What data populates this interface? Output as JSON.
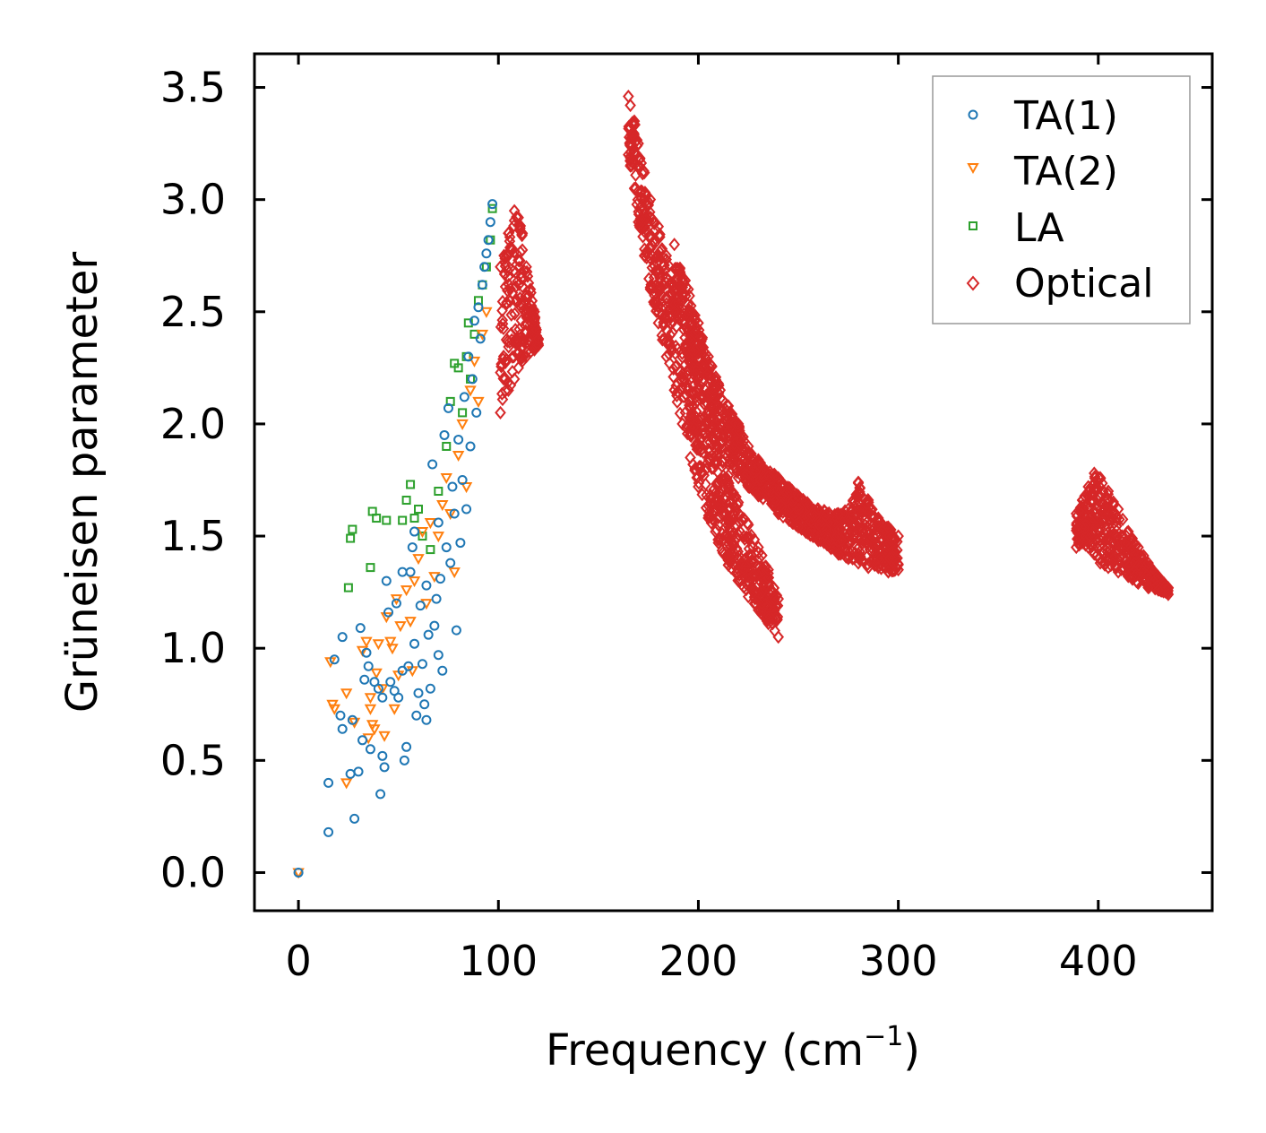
{
  "chart_data": {
    "type": "scatter",
    "title": "",
    "xlabel": "Frequency (cm",
    "xlabel_sup": "−1",
    "xlabel_end": ")",
    "ylabel": "Grüneisen parameter",
    "xlim": [
      -22,
      457
    ],
    "ylim": [
      -0.17,
      3.65
    ],
    "xticks": [
      0,
      100,
      200,
      300,
      400
    ],
    "xtick_labels": [
      "0",
      "100",
      "200",
      "300",
      "400"
    ],
    "yticks": [
      0.0,
      0.5,
      1.0,
      1.5,
      2.0,
      2.5,
      3.0,
      3.5
    ],
    "ytick_labels": [
      "0.0",
      "0.5",
      "1.0",
      "1.5",
      "2.0",
      "2.5",
      "3.0",
      "3.5"
    ],
    "legend_position": "top-right",
    "series": [
      {
        "name": "TA(1)",
        "marker": "circle",
        "color": "#1f77b4",
        "points": [
          [
            0,
            0
          ],
          [
            15,
            0.18
          ],
          [
            15,
            0.4
          ],
          [
            28,
            0.24
          ],
          [
            26,
            0.44
          ],
          [
            30,
            0.45
          ],
          [
            18,
            0.95
          ],
          [
            22,
            1.05
          ],
          [
            21,
            0.7
          ],
          [
            22,
            0.64
          ],
          [
            27,
            0.68
          ],
          [
            32,
            0.59
          ],
          [
            36,
            0.55
          ],
          [
            41,
            0.35
          ],
          [
            43,
            0.47
          ],
          [
            42,
            0.52
          ],
          [
            31,
            1.09
          ],
          [
            33,
            0.86
          ],
          [
            35,
            0.92
          ],
          [
            34,
            0.98
          ],
          [
            38,
            0.85
          ],
          [
            40,
            0.82
          ],
          [
            42,
            0.78
          ],
          [
            44,
            1.3
          ],
          [
            45,
            1.16
          ],
          [
            46,
            0.85
          ],
          [
            48,
            0.81
          ],
          [
            49,
            1.2
          ],
          [
            50,
            0.78
          ],
          [
            52,
            0.9
          ],
          [
            53,
            0.5
          ],
          [
            54,
            0.56
          ],
          [
            55,
            0.92
          ],
          [
            52,
            1.34
          ],
          [
            56,
            1.34
          ],
          [
            57,
            1.45
          ],
          [
            58,
            1.52
          ],
          [
            58,
            1.02
          ],
          [
            59,
            0.7
          ],
          [
            60,
            0.8
          ],
          [
            61,
            1.19
          ],
          [
            62,
            0.93
          ],
          [
            63,
            0.75
          ],
          [
            64,
            0.68
          ],
          [
            64,
            1.28
          ],
          [
            65,
            1.06
          ],
          [
            66,
            0.82
          ],
          [
            67,
            1.82
          ],
          [
            68,
            1.1
          ],
          [
            69,
            1.22
          ],
          [
            70,
            0.97
          ],
          [
            70,
            1.56
          ],
          [
            71,
            1.31
          ],
          [
            72,
            0.9
          ],
          [
            73,
            1.95
          ],
          [
            74,
            1.45
          ],
          [
            75,
            2.07
          ],
          [
            76,
            1.38
          ],
          [
            77,
            1.72
          ],
          [
            78,
            1.6
          ],
          [
            79,
            1.08
          ],
          [
            80,
            1.93
          ],
          [
            81,
            1.47
          ],
          [
            82,
            1.75
          ],
          [
            83,
            2.12
          ],
          [
            84,
            1.62
          ],
          [
            85,
            2.3
          ],
          [
            86,
            1.9
          ],
          [
            87,
            2.2
          ],
          [
            88,
            2.46
          ],
          [
            89,
            2.05
          ],
          [
            90,
            2.52
          ],
          [
            91,
            2.38
          ],
          [
            92,
            2.62
          ],
          [
            93,
            2.7
          ],
          [
            94,
            2.76
          ],
          [
            95,
            2.82
          ],
          [
            96,
            2.9
          ],
          [
            97,
            2.98
          ]
        ]
      },
      {
        "name": "TA(2)",
        "marker": "triangle-down",
        "color": "#ff7f0e",
        "points": [
          [
            0,
            0
          ],
          [
            16,
            0.94
          ],
          [
            17,
            0.75
          ],
          [
            18,
            0.73
          ],
          [
            24,
            0.4
          ],
          [
            24,
            0.8
          ],
          [
            28,
            0.67
          ],
          [
            32,
            0.99
          ],
          [
            34,
            1.03
          ],
          [
            35,
            0.6
          ],
          [
            36,
            0.73
          ],
          [
            36,
            0.78
          ],
          [
            37,
            0.66
          ],
          [
            38,
            0.64
          ],
          [
            39,
            0.89
          ],
          [
            40,
            1.02
          ],
          [
            42,
            0.82
          ],
          [
            43,
            0.61
          ],
          [
            44,
            1.14
          ],
          [
            46,
            1.03
          ],
          [
            47,
            1.0
          ],
          [
            48,
            0.73
          ],
          [
            49,
            1.22
          ],
          [
            50,
            0.88
          ],
          [
            51,
            1.1
          ],
          [
            54,
            1.26
          ],
          [
            56,
            1.12
          ],
          [
            57,
            0.9
          ],
          [
            58,
            1.3
          ],
          [
            60,
            1.4
          ],
          [
            62,
            1.52
          ],
          [
            64,
            1.2
          ],
          [
            66,
            1.56
          ],
          [
            68,
            1.32
          ],
          [
            70,
            1.5
          ],
          [
            72,
            1.64
          ],
          [
            74,
            1.76
          ],
          [
            76,
            1.6
          ],
          [
            78,
            1.34
          ],
          [
            80,
            1.86
          ],
          [
            82,
            2.0
          ],
          [
            84,
            1.72
          ],
          [
            86,
            2.15
          ],
          [
            88,
            2.28
          ],
          [
            90,
            2.1
          ],
          [
            92,
            2.4
          ],
          [
            94,
            2.5
          ]
        ]
      },
      {
        "name": "LA",
        "marker": "square",
        "color": "#2ca02c",
        "points": [
          [
            25,
            1.27
          ],
          [
            26,
            1.49
          ],
          [
            27,
            1.53
          ],
          [
            36,
            1.36
          ],
          [
            37,
            1.61
          ],
          [
            39,
            1.58
          ],
          [
            44,
            1.57
          ],
          [
            52,
            1.57
          ],
          [
            54,
            1.66
          ],
          [
            56,
            1.73
          ],
          [
            58,
            1.58
          ],
          [
            60,
            1.62
          ],
          [
            62,
            1.5
          ],
          [
            66,
            1.44
          ],
          [
            70,
            1.7
          ],
          [
            74,
            1.9
          ],
          [
            76,
            2.1
          ],
          [
            78,
            2.27
          ],
          [
            80,
            2.25
          ],
          [
            82,
            2.05
          ],
          [
            84,
            2.3
          ],
          [
            85,
            2.45
          ],
          [
            86,
            2.2
          ],
          [
            88,
            2.4
          ],
          [
            90,
            2.55
          ],
          [
            92,
            2.62
          ],
          [
            94,
            2.7
          ],
          [
            96,
            2.82
          ],
          [
            97,
            2.96
          ]
        ]
      },
      {
        "name": "Optical",
        "marker": "diamond",
        "color": "#d62728",
        "bands": [
          {
            "x": [
              165,
              166,
              168,
              170,
              173,
              176,
              180,
              184,
              188,
              192,
              196,
              200,
              205,
              210,
              215,
              220,
              225,
              230,
              235,
              240
            ],
            "y_low": [
              3.2,
              3.15,
              3.05,
              2.9,
              2.75,
              2.6,
              2.45,
              2.3,
              2.15,
              2.0,
              1.85,
              1.72,
              1.58,
              1.47,
              1.37,
              1.3,
              1.23,
              1.17,
              1.11,
              1.05
            ],
            "y_high": [
              3.46,
              3.42,
              3.35,
              3.25,
              3.12,
              3.0,
              2.88,
              2.75,
              2.62,
              2.48,
              2.34,
              2.2,
              2.05,
              1.9,
              1.77,
              1.65,
              1.55,
              1.45,
              1.35,
              1.22
            ]
          },
          {
            "x": [
              188,
              195,
              200,
              205,
              210,
              215,
              220,
              225,
              230,
              240,
              250,
              260,
              270,
              275,
              280,
              285,
              290,
              295,
              300
            ],
            "y_low": [
              2.5,
              2.3,
              2.15,
              2.0,
              1.9,
              1.82,
              1.76,
              1.72,
              1.68,
              1.6,
              1.54,
              1.48,
              1.42,
              1.4,
              1.38,
              1.36,
              1.36,
              1.34,
              1.35
            ],
            "y_high": [
              2.8,
              2.6,
              2.45,
              2.3,
              2.18,
              2.08,
              2.0,
              1.9,
              1.84,
              1.76,
              1.68,
              1.62,
              1.6,
              1.62,
              1.74,
              1.66,
              1.58,
              1.54,
              1.5
            ]
          },
          {
            "x": [
              101,
              105,
              108,
              110,
              112,
              114,
              116,
              118,
              119,
              120
            ],
            "y_low": [
              2.05,
              2.15,
              2.2,
              2.25,
              2.28,
              2.3,
              2.32,
              2.33,
              2.35,
              2.35
            ],
            "y_high": [
              2.7,
              2.85,
              2.95,
              2.92,
              2.85,
              2.7,
              2.6,
              2.5,
              2.42,
              2.38
            ]
          },
          {
            "x": [
              389,
              392,
              395,
              398,
              401,
              405,
              410,
              415,
              420,
              425,
              430,
              435
            ],
            "y_low": [
              1.45,
              1.47,
              1.45,
              1.42,
              1.38,
              1.36,
              1.34,
              1.32,
              1.29,
              1.27,
              1.26,
              1.24
            ],
            "y_high": [
              1.6,
              1.66,
              1.72,
              1.78,
              1.76,
              1.7,
              1.62,
              1.52,
              1.45,
              1.38,
              1.32,
              1.27
            ]
          }
        ]
      }
    ]
  },
  "colors": {
    "ta1": "#1f77b4",
    "ta2": "#ff7f0e",
    "la": "#2ca02c",
    "optical": "#d62728"
  }
}
